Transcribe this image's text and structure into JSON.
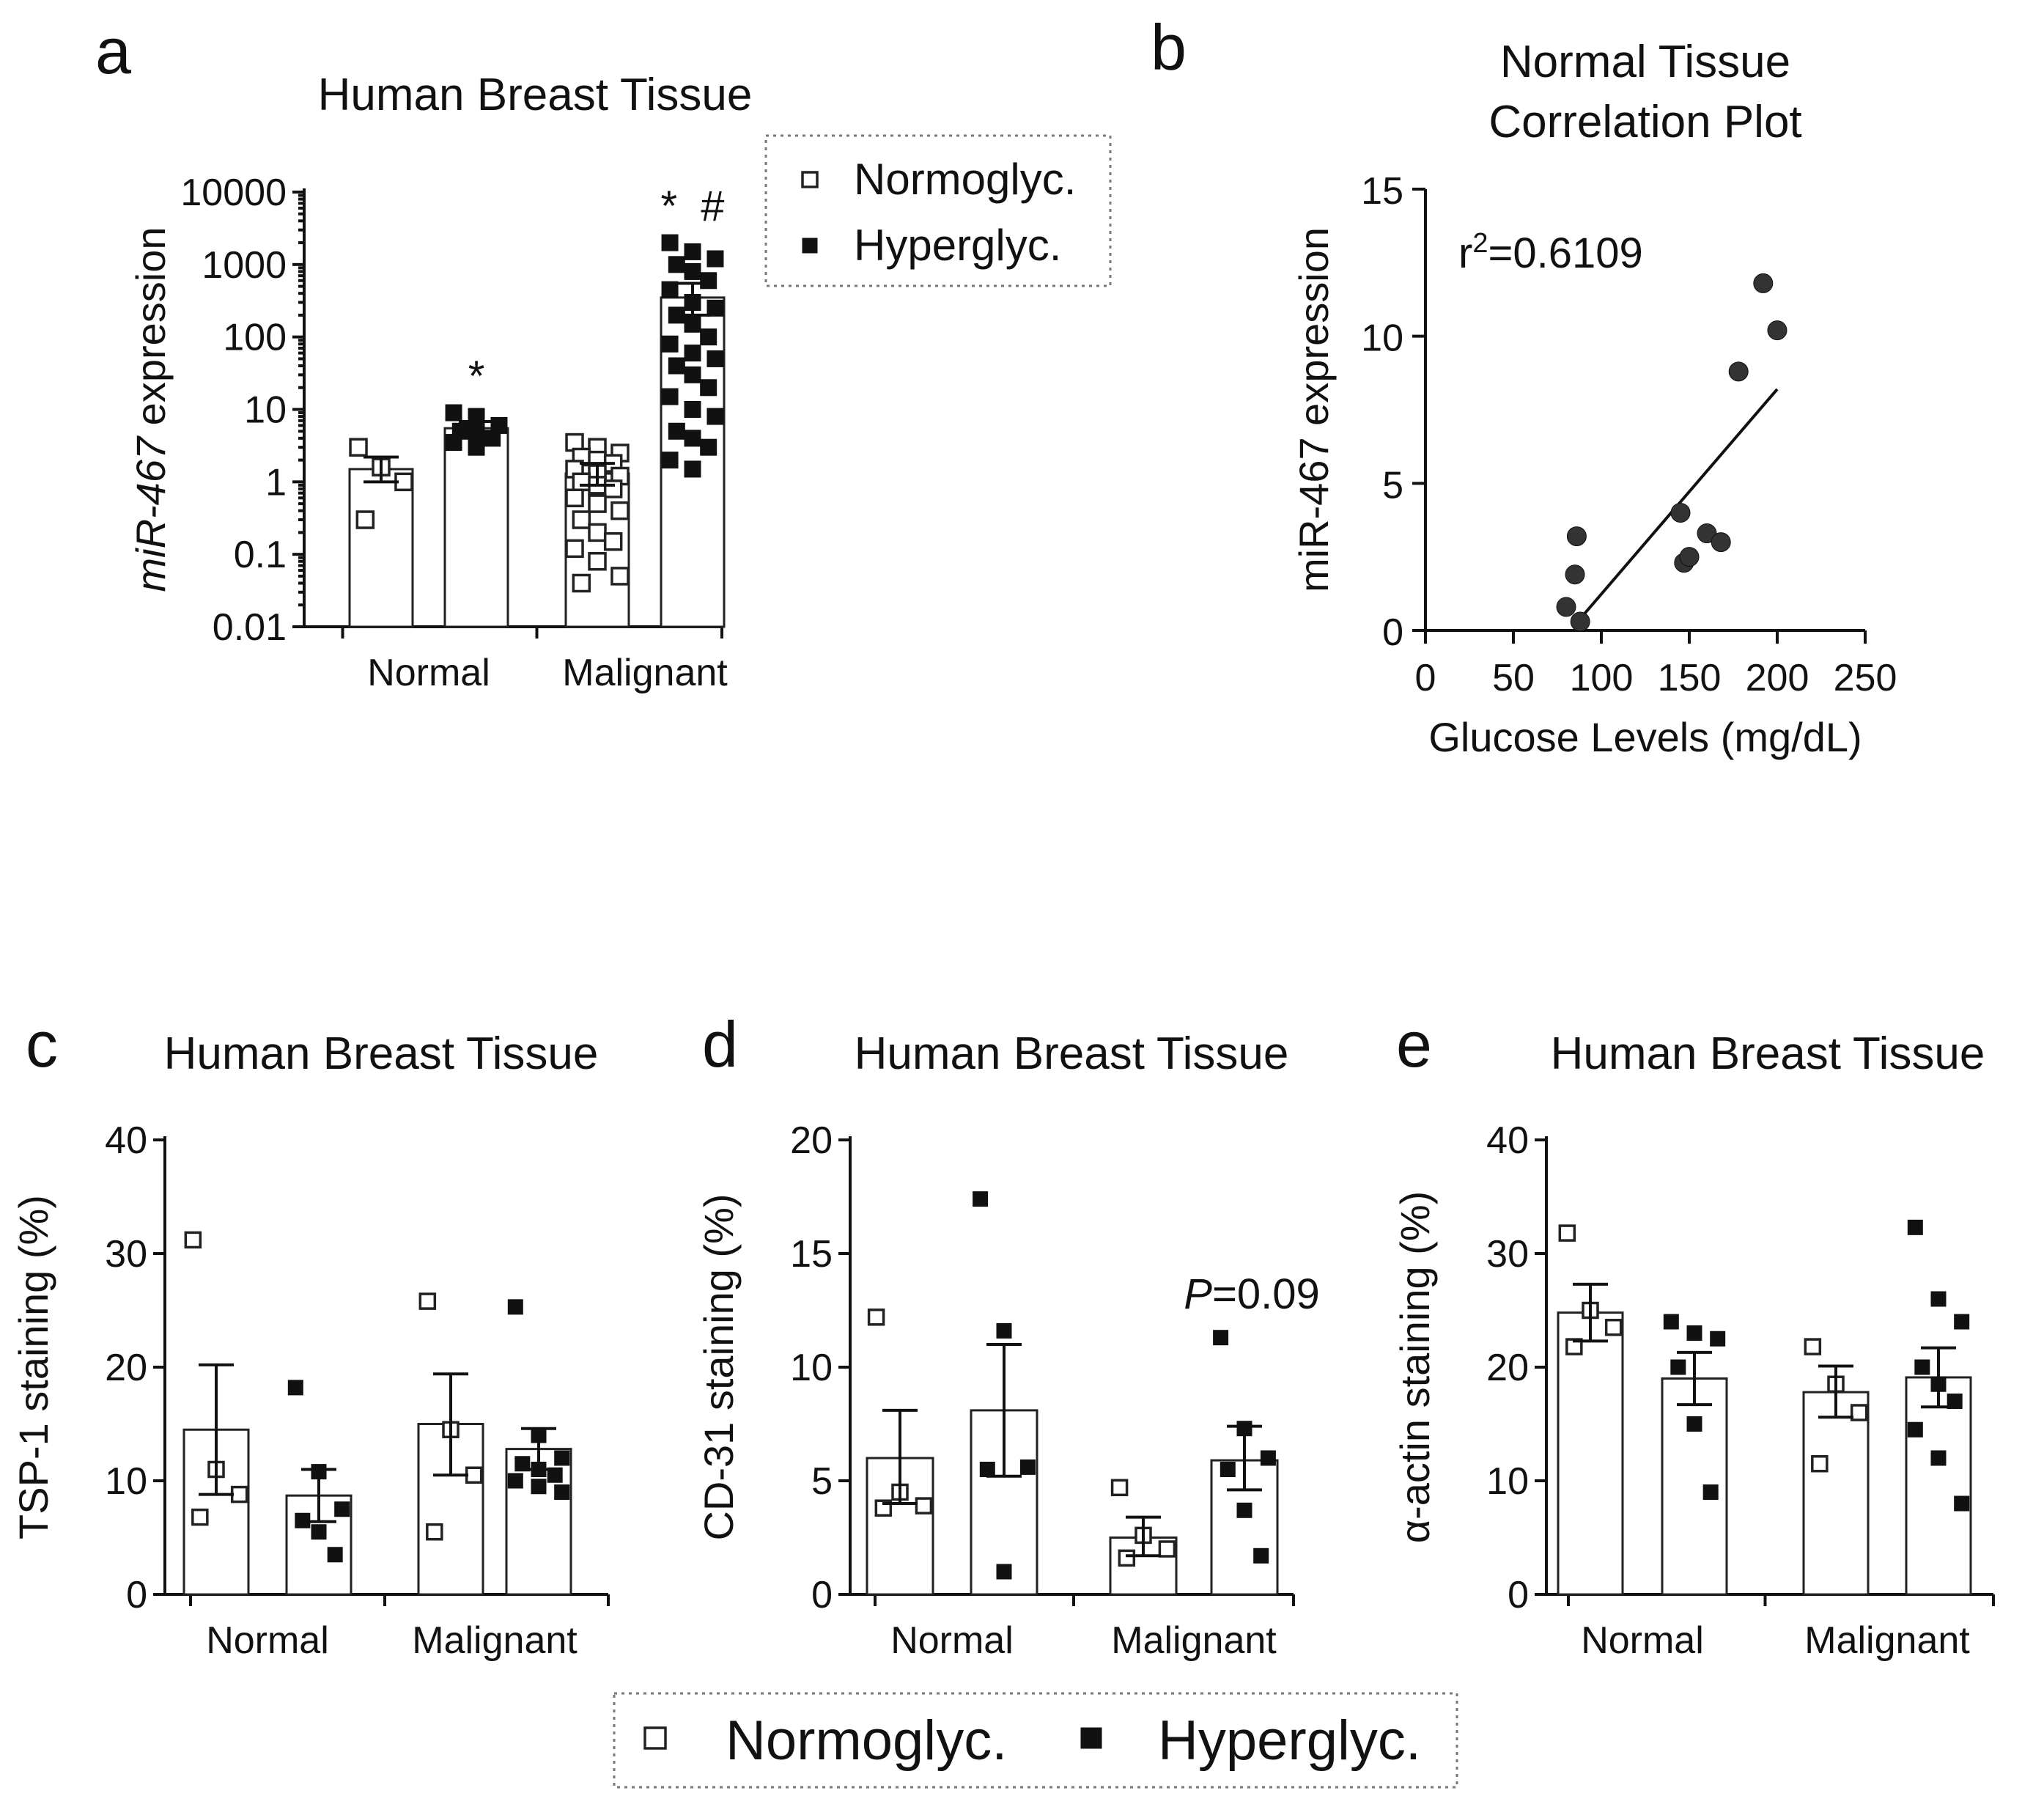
{
  "legend_bottom": {
    "normo": "Normoglyc.",
    "hyper": "Hyperglyc."
  },
  "chart_data": [
    {
      "id": "a",
      "letter": "a",
      "type": "bar",
      "title": "Human Breast Tissue",
      "ylabel_italic": "miR-467",
      "ylabel_rest": " expression",
      "yscale": "log",
      "ylim": [
        0.01,
        10000
      ],
      "yticks": [
        0.01,
        0.1,
        1,
        10,
        100,
        1000,
        10000
      ],
      "ytick_labels": [
        "0.01",
        "0.1",
        "1",
        "10",
        "100",
        "1000",
        "10000"
      ],
      "categories": [
        "Normal",
        "Malignant"
      ],
      "legend": {
        "normo": "Normoglyc.",
        "hyper": "Hyperglyc."
      },
      "series": [
        {
          "name": "Normoglyc.",
          "marker": "open-square",
          "means": [
            1.5,
            1.3
          ],
          "sem": [
            [
              1.0,
              2.2
            ],
            [
              0.9,
              1.8
            ]
          ],
          "points": [
            [
              3.0,
              1.6,
              1.0,
              0.3
            ],
            [
              3.5,
              3.0,
              2.5,
              2.2,
              2.0,
              1.8,
              1.5,
              1.3,
              1.2,
              1.0,
              0.9,
              0.8,
              0.6,
              0.5,
              0.4,
              0.3,
              0.2,
              0.15,
              0.12,
              0.08,
              0.05,
              0.04
            ]
          ],
          "annotations": [
            "",
            ""
          ]
        },
        {
          "name": "Hyperglyc.",
          "marker": "filled-square",
          "means": [
            5.5,
            350
          ],
          "sem": [
            [
              4.5,
              6.8
            ],
            [
              200,
              550
            ]
          ],
          "points": [
            [
              9,
              8,
              6,
              5,
              5,
              4,
              3.5,
              3
            ],
            [
              2000,
              1500,
              1200,
              1000,
              800,
              600,
              450,
              300,
              250,
              200,
              150,
              100,
              80,
              60,
              50,
              40,
              30,
              20,
              15,
              10,
              8,
              5,
              4,
              3,
              2,
              1.5
            ]
          ],
          "annotations": [
            "*",
            "*  #"
          ]
        }
      ]
    },
    {
      "id": "b",
      "letter": "b",
      "type": "scatter",
      "title_lines": [
        "Normal Tissue",
        "Correlation Plot"
      ],
      "xlabel": "Glucose Levels (mg/dL)",
      "ylabel": "miR-467 expression",
      "xlim": [
        0,
        250
      ],
      "ylim": [
        0,
        15
      ],
      "xticks": [
        0,
        50,
        100,
        150,
        200,
        250
      ],
      "yticks": [
        0,
        5,
        10,
        15
      ],
      "annotation_r": "r",
      "annotation_sup": "2",
      "annotation_val": "=0.6109",
      "points": [
        [
          80,
          0.8
        ],
        [
          85,
          1.9
        ],
        [
          86,
          3.2
        ],
        [
          88,
          0.3
        ],
        [
          145,
          4.0
        ],
        [
          147,
          2.3
        ],
        [
          150,
          2.5
        ],
        [
          160,
          3.3
        ],
        [
          168,
          3.0
        ],
        [
          178,
          8.8
        ],
        [
          192,
          11.8
        ],
        [
          200,
          10.2
        ]
      ],
      "fit": {
        "x0": 88,
        "y0": 0.4,
        "x1": 200,
        "y1": 8.2
      }
    },
    {
      "id": "c",
      "letter": "c",
      "type": "bar",
      "title": "Human Breast Tissue",
      "ylabel": "TSP-1 staining (%)",
      "yscale": "linear",
      "ylim": [
        0,
        40
      ],
      "yticks": [
        0,
        10,
        20,
        30,
        40
      ],
      "ytick_labels": [
        "0",
        "10",
        "20",
        "30",
        "40"
      ],
      "categories": [
        "Normal",
        "Malignant"
      ],
      "series": [
        {
          "name": "Normoglyc.",
          "marker": "open-square",
          "means": [
            14.5,
            15.0
          ],
          "sem": [
            [
              8.8,
              20.2
            ],
            [
              10.5,
              19.4
            ]
          ],
          "points": [
            [
              31.2,
              11.0,
              8.8,
              6.8
            ],
            [
              25.8,
              14.5,
              10.5,
              5.5
            ]
          ],
          "annotations": [
            "",
            ""
          ]
        },
        {
          "name": "Hyperglyc.",
          "marker": "filled-square",
          "means": [
            8.7,
            12.8
          ],
          "sem": [
            [
              6.4,
              11.0
            ],
            [
              11.0,
              14.6
            ]
          ],
          "points": [
            [
              18.2,
              10.8,
              7.5,
              6.5,
              5.5,
              3.5
            ],
            [
              25.3,
              14.0,
              12.0,
              11.5,
              11.0,
              10.5,
              10.0,
              9.5,
              9.0
            ]
          ],
          "annotations": [
            "",
            ""
          ]
        }
      ]
    },
    {
      "id": "d",
      "letter": "d",
      "type": "bar",
      "title": "Human Breast Tissue",
      "ylabel": "CD-31 staining (%)",
      "yscale": "linear",
      "ylim": [
        0,
        20
      ],
      "yticks": [
        0,
        5,
        10,
        15,
        20
      ],
      "ytick_labels": [
        "0",
        "5",
        "10",
        "15",
        "20"
      ],
      "categories": [
        "Normal",
        "Malignant"
      ],
      "series": [
        {
          "name": "Normoglyc.",
          "marker": "open-square",
          "means": [
            6.0,
            2.5
          ],
          "sem": [
            [
              4.0,
              8.1
            ],
            [
              1.7,
              3.4
            ]
          ],
          "points": [
            [
              12.2,
              4.5,
              3.9,
              3.8
            ],
            [
              4.7,
              2.6,
              2.0,
              1.6
            ]
          ],
          "annotations": [
            "",
            ""
          ]
        },
        {
          "name": "Hyperglyc.",
          "marker": "filled-square",
          "means": [
            8.1,
            5.9
          ],
          "sem": [
            [
              5.2,
              11.0
            ],
            [
              4.6,
              7.4
            ]
          ],
          "points": [
            [
              17.4,
              11.6,
              5.6,
              5.5,
              1.0
            ],
            [
              11.3,
              7.3,
              6.0,
              5.5,
              3.7,
              1.7
            ]
          ],
          "annotations": [
            "",
            "P=0.09"
          ]
        }
      ]
    },
    {
      "id": "e",
      "letter": "e",
      "type": "bar",
      "title": "Human Breast Tissue",
      "ylabel": "α-actin staining (%)",
      "yscale": "linear",
      "ylim": [
        0,
        40
      ],
      "yticks": [
        0,
        10,
        20,
        30,
        40
      ],
      "ytick_labels": [
        "0",
        "10",
        "20",
        "30",
        "40"
      ],
      "categories": [
        "Normal",
        "Malignant"
      ],
      "series": [
        {
          "name": "Normoglyc.",
          "marker": "open-square",
          "means": [
            24.8,
            17.8
          ],
          "sem": [
            [
              22.3,
              27.3
            ],
            [
              15.6,
              20.1
            ]
          ],
          "points": [
            [
              31.8,
              25.0,
              23.5,
              21.8
            ],
            [
              21.8,
              18.5,
              16.0,
              11.5
            ]
          ],
          "annotations": [
            "",
            ""
          ]
        },
        {
          "name": "Hyperglyc.",
          "marker": "filled-square",
          "means": [
            19.0,
            19.1
          ],
          "sem": [
            [
              16.7,
              21.3
            ],
            [
              16.5,
              21.7
            ]
          ],
          "points": [
            [
              24.0,
              23.0,
              22.5,
              20.0,
              15.0,
              9.0
            ],
            [
              32.3,
              26.0,
              24.0,
              20.0,
              18.5,
              17.0,
              14.5,
              12.0,
              8.0
            ]
          ],
          "annotations": [
            "",
            ""
          ]
        }
      ]
    }
  ]
}
